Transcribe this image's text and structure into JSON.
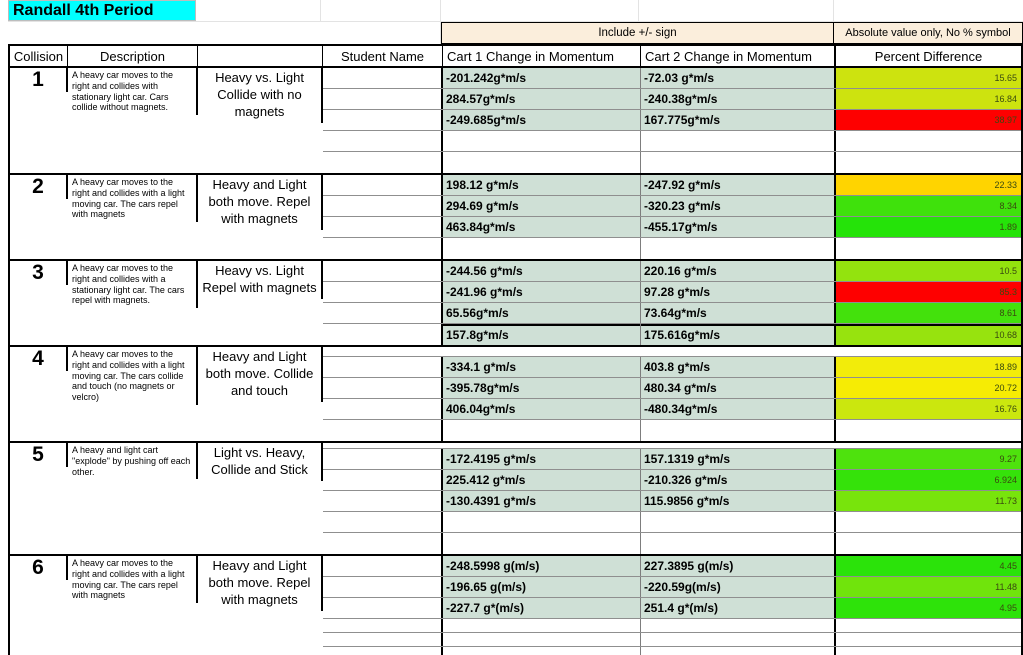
{
  "title": "Randall 4th Period",
  "banner": {
    "include_sign": "Include +/- sign",
    "absolute_value": "Absolute value only, No % symbol"
  },
  "columns": {
    "collision": "Collision",
    "description": "Description",
    "type": "",
    "student_name": "Student Name",
    "cart1": "Cart 1 Change in Momentum",
    "cart2": "Cart 2 Change in Momentum",
    "percent": "Percent Difference"
  },
  "colors": {
    "title_bg": "#00ffff",
    "banner_bg": "#fbeedc",
    "data_cell_bg": "#cfe0d6",
    "percent_value_text": "#3a4a10",
    "red": "#fe0000"
  },
  "collisions": [
    {
      "number": "1",
      "description": "A heavy car moves to the right and collides with stationary light car.  Cars collide without magnets.",
      "type": "Heavy vs. Light Collide with no magnets",
      "rows": [
        {
          "cart1": "-201.242g*m/s",
          "cart2": "-72.03 g*m/s",
          "percent": "15.65",
          "percent_color": "#cde30f"
        },
        {
          "cart1": "284.57g*m/s",
          "cart2": "-240.38g*m/s",
          "percent": "16.84",
          "percent_color": "#cde30f"
        },
        {
          "cart1": "-249.685g*m/s",
          "cart2": "167.775g*m/s",
          "percent": "38.97",
          "percent_color": "#fe0000"
        },
        {
          "cart1": "",
          "cart2": "",
          "percent": "",
          "percent_color": ""
        },
        {
          "cart1": "",
          "cart2": "",
          "percent": "",
          "percent_color": ""
        }
      ]
    },
    {
      "number": "2",
      "description": "A heavy car moves to the right and collides with a light moving car. The cars repel with magnets",
      "type": "Heavy and Light both move. Repel with magnets",
      "rows": [
        {
          "cart1": "198.12 g*m/s",
          "cart2": "-247.92 g*m/s",
          "percent": "22.33",
          "percent_color": "#ffd400"
        },
        {
          "cart1": "294.69 g*m/s",
          "cart2": "-320.23 g*m/s",
          "percent": "8.34",
          "percent_color": "#3fe10c"
        },
        {
          "cart1": "463.84g*m/s",
          "cart2": "-455.17g*m/s",
          "percent": "1.89",
          "percent_color": "#25e309"
        },
        {
          "cart1": "",
          "cart2": "",
          "percent": "",
          "percent_color": ""
        }
      ]
    },
    {
      "number": "3",
      "description": "A heavy car moves to the right and collides with a stationary light car.  The cars repel with magnets.",
      "type": "Heavy vs. Light Repel with magnets",
      "rows": [
        {
          "cart1": "-244.56 g*m/s",
          "cart2": "220.16 g*m/s",
          "percent": "10.5",
          "percent_color": "#93e30e"
        },
        {
          "cart1": "-241.96 g*m/s",
          "cart2": "97.28 g*m/s",
          "percent": "85.3",
          "percent_color": "#fe0000"
        },
        {
          "cart1": "65.56g*m/s",
          "cart2": "73.64g*m/s",
          "percent": "8.61",
          "percent_color": "#43e10c"
        },
        {
          "cart1": "157.8g*m/s",
          "cart2": "175.616g*m/s",
          "percent": "10.68",
          "percent_color": "#97e30e",
          "heavy_top": true
        }
      ]
    },
    {
      "number": "4",
      "description": "A heavy car moves to the right and collides with a light moving car. The cars collide and touch (no magnets or velcro)",
      "type": "Heavy and Light both move. Collide and touch",
      "rows": [
        {
          "cart1": "-334.1 g*m/s",
          "cart2": "403.8 g*m/s",
          "percent": "18.89",
          "percent_color": "#f2ec0a"
        },
        {
          "cart1": "-395.78g*m/s",
          "cart2": "480.34 g*m/s",
          "percent": "20.72",
          "percent_color": "#f6ec04"
        },
        {
          "cart1": "406.04g*m/s",
          "cart2": "-480.34g*m/s",
          "percent": "16.76",
          "percent_color": "#cbe70e"
        },
        {
          "cart1": "",
          "cart2": "",
          "percent": "",
          "percent_color": ""
        }
      ]
    },
    {
      "number": "5",
      "description": "A heavy and light cart \"explode\" by pushing off each other.",
      "type": "Light vs. Heavy, Collide and Stick",
      "rows": [
        {
          "cart1": "-172.4195 g*m/s",
          "cart2": "157.1319 g*m/s",
          "percent": "9.27",
          "percent_color": "#4ee20d"
        },
        {
          "cart1": "225.412 g*m/s",
          "cart2": "-210.326 g*m/s",
          "percent": "6.924",
          "percent_color": "#35e20a"
        },
        {
          "cart1": "-130.4391 g*m/s",
          "cart2": "115.9856 g*m/s",
          "percent": "11.73",
          "percent_color": "#78e40c"
        },
        {
          "cart1": "",
          "cart2": "",
          "percent": "",
          "percent_color": ""
        },
        {
          "cart1": "",
          "cart2": "",
          "percent": "",
          "percent_color": ""
        }
      ]
    },
    {
      "number": "6",
      "description": "A heavy car moves to the right and collides with a light moving car. The cars repel with magnets",
      "type": "Heavy and Light both move. Repel with magnets",
      "rows": [
        {
          "cart1": "-248.5998 g(m/s)",
          "cart2": "227.3895 g(m/s)",
          "percent": "4.45",
          "percent_color": "#2be30a"
        },
        {
          "cart1": "-196.65 g(m/s)",
          "cart2": "-220.59g(m/s)",
          "percent": "11.48",
          "percent_color": "#70e40c"
        },
        {
          "cart1": "-227.7 g*(m/s)",
          "cart2": "251.4 g*(m/s)",
          "percent": "4.95",
          "percent_color": "#2ee30a"
        },
        {
          "cart1": "",
          "cart2": "",
          "percent": "",
          "percent_color": ""
        },
        {
          "cart1": "",
          "cart2": "",
          "percent": "",
          "percent_color": ""
        },
        {
          "cart1": "",
          "cart2": "",
          "percent": "",
          "percent_color": ""
        }
      ]
    }
  ]
}
